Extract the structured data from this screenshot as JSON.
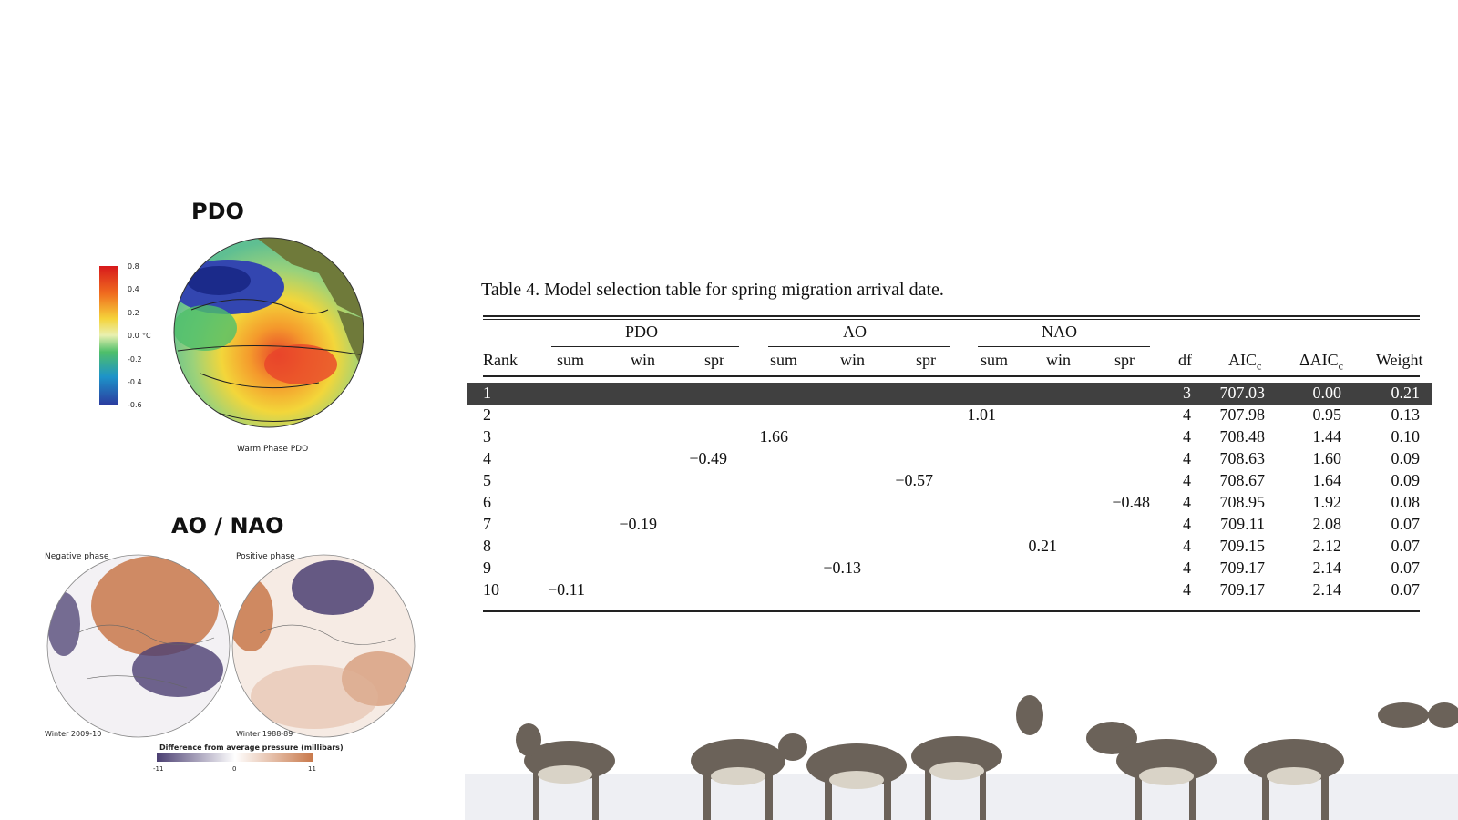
{
  "figures": {
    "pdo_title": "PDO",
    "pdo_caption": "Warm Phase PDO",
    "pdo_scale": [
      "0.8",
      "0.4",
      "0.2",
      "0.0",
      "-0.2",
      "-0.4",
      "-0.6"
    ],
    "pdo_unit": "°C",
    "ao_title": "AO / NAO",
    "ao_left_label": "Negative phase",
    "ao_right_label": "Positive phase",
    "ao_left_winter": "Winter 2009-10",
    "ao_right_winter": "Winter 1988-89",
    "ao_scale_title": "Difference from average pressure (millibars)",
    "ao_scale_ticks": [
      "-11",
      "0",
      "11"
    ]
  },
  "table": {
    "caption": "Table 4. Model selection table for spring migration arrival date.",
    "groups": [
      "PDO",
      "AO",
      "NAO"
    ],
    "columns": [
      "Rank",
      "sum",
      "win",
      "spr",
      "sum",
      "win",
      "spr",
      "sum",
      "win",
      "spr",
      "df",
      "AIC",
      "ΔAIC",
      "Weight"
    ],
    "aic_sub": "c",
    "rows": [
      {
        "rank": "1",
        "vals": [
          "",
          "",
          "",
          "",
          "",
          "",
          "",
          "",
          ""
        ],
        "df": "3",
        "aic": "707.03",
        "daic": "0.00",
        "w": "0.21"
      },
      {
        "rank": "2",
        "vals": [
          "",
          "",
          "",
          "",
          "",
          "",
          "1.01",
          "",
          ""
        ],
        "df": "4",
        "aic": "707.98",
        "daic": "0.95",
        "w": "0.13"
      },
      {
        "rank": "3",
        "vals": [
          "",
          "",
          "",
          "1.66",
          "",
          "",
          "",
          "",
          ""
        ],
        "df": "4",
        "aic": "708.48",
        "daic": "1.44",
        "w": "0.10"
      },
      {
        "rank": "4",
        "vals": [
          "",
          "",
          "−0.49",
          "",
          "",
          "",
          "",
          "",
          ""
        ],
        "df": "4",
        "aic": "708.63",
        "daic": "1.60",
        "w": "0.09"
      },
      {
        "rank": "5",
        "vals": [
          "",
          "",
          "",
          "",
          "",
          "−0.57",
          "",
          "",
          ""
        ],
        "df": "4",
        "aic": "708.67",
        "daic": "1.64",
        "w": "0.09"
      },
      {
        "rank": "6",
        "vals": [
          "",
          "",
          "",
          "",
          "",
          "",
          "",
          "",
          "−0.48"
        ],
        "df": "4",
        "aic": "708.95",
        "daic": "1.92",
        "w": "0.08"
      },
      {
        "rank": "7",
        "vals": [
          "",
          "−0.19",
          "",
          "",
          "",
          "",
          "",
          "",
          ""
        ],
        "df": "4",
        "aic": "709.11",
        "daic": "2.08",
        "w": "0.07"
      },
      {
        "rank": "8",
        "vals": [
          "",
          "",
          "",
          "",
          "",
          "",
          "",
          "0.21",
          ""
        ],
        "df": "4",
        "aic": "709.15",
        "daic": "2.12",
        "w": "0.07"
      },
      {
        "rank": "9",
        "vals": [
          "",
          "",
          "",
          "",
          "−0.13",
          "",
          "",
          "",
          ""
        ],
        "df": "4",
        "aic": "709.17",
        "daic": "2.14",
        "w": "0.07"
      },
      {
        "rank": "10",
        "vals": [
          "−0.11",
          "",
          "",
          "",
          "",
          "",
          "",
          "",
          ""
        ],
        "df": "4",
        "aic": "709.17",
        "daic": "2.14",
        "w": "0.07"
      }
    ]
  },
  "colors": {
    "highlight": "#404040",
    "pdo_red": "#d7191c",
    "pdo_blue": "#2b3da0",
    "ao_orange": "#c8784a",
    "ao_purple": "#4b3f72"
  }
}
